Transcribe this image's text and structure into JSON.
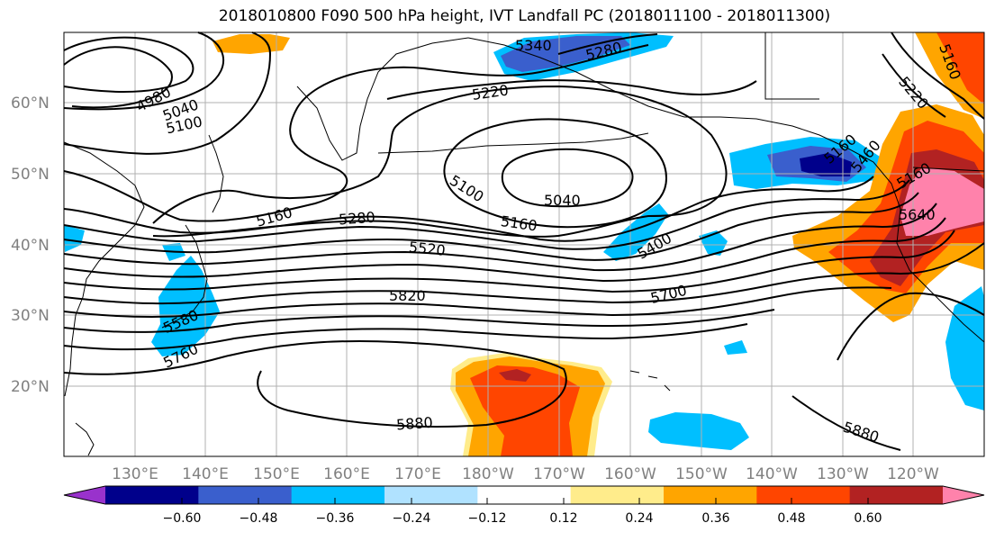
{
  "title": "2018010800 F090 500 hPa height, IVT Landfall PC (2018011100 - 2018011300)",
  "latitude_labels": [
    "60°N",
    "50°N",
    "40°N",
    "30°N",
    "20°N"
  ],
  "longitude_labels": [
    "130°E",
    "140°E",
    "150°E",
    "160°E",
    "170°E",
    "180°W",
    "170°W",
    "160°W",
    "150°W",
    "140°W",
    "130°W",
    "120°W"
  ],
  "contour_labels": [
    "4980",
    "5040",
    "5100",
    "5340",
    "5280",
    "5220",
    "5100",
    "5040",
    "5160",
    "5160",
    "5280",
    "5520",
    "5400",
    "5820",
    "5700",
    "5580",
    "5760",
    "5880",
    "5880",
    "5220",
    "5160",
    "5160",
    "5640",
    "5160",
    "5460"
  ],
  "colorbar": {
    "tick_labels": [
      "−0.60",
      "−0.48",
      "−0.36",
      "−0.24",
      "−0.12",
      "0.12",
      "0.24",
      "0.36",
      "0.48",
      "0.60"
    ],
    "colors": [
      "#9932cc",
      "#00008b",
      "#3a5fcd",
      "#00bfff",
      "#b0e2ff",
      "#ffffff",
      "#ffec8b",
      "#ffa500",
      "#ff4500",
      "#b22222",
      "#ff82ab"
    ]
  },
  "fill_colors": {
    "neg_light": "#b0e2ff",
    "neg_mid": "#00bfff",
    "neg_strong": "#3a5fcd",
    "neg_max": "#00008b",
    "pos_light": "#ffec8b",
    "pos_mid": "#ffa500",
    "pos_strong": "#ff4500",
    "pos_stronger": "#b22222",
    "pos_max": "#ff82ab"
  }
}
